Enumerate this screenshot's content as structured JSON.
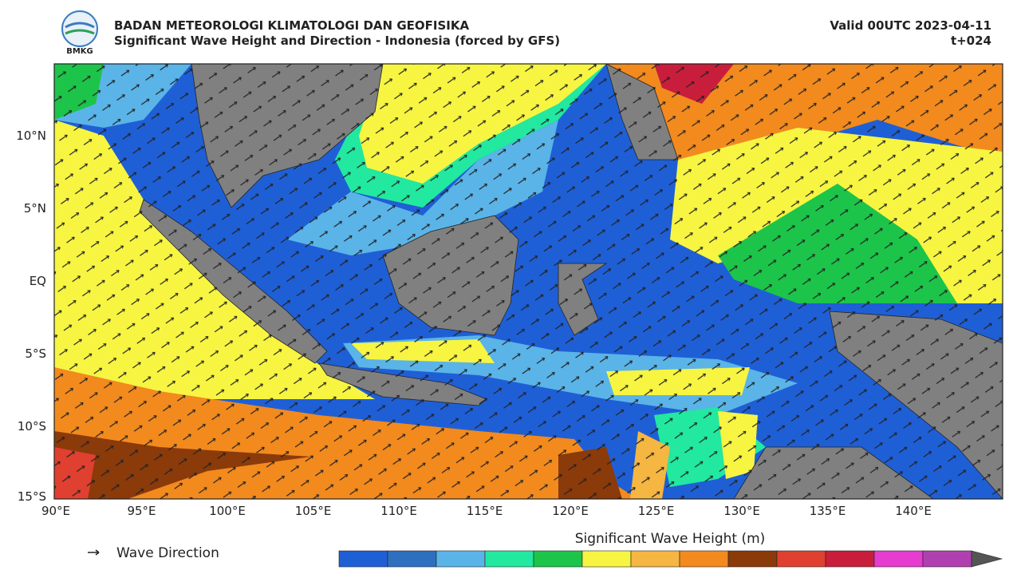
{
  "header": {
    "agency": "BADAN METEOROLOGI KLIMATOLOGI DAN GEOFISIKA",
    "subtitle": "Significant Wave Height and Direction - Indonesia (forced by GFS)",
    "valid": "Valid 00UTC 2023-04-11",
    "step": "t+024",
    "logo_text": "BMKG"
  },
  "map": {
    "lat_labels": [
      "10°N",
      "5°N",
      "EQ",
      "5°S",
      "10°S",
      "15°S"
    ],
    "lon_labels": [
      "90°E",
      "95°E",
      "100°E",
      "105°E",
      "110°E",
      "115°E",
      "120°E",
      "125°E",
      "130°E",
      "135°E",
      "140°E"
    ]
  },
  "legend": {
    "arrow_label": "Wave Direction"
  },
  "colorbar": {
    "label": "Significant Wave Height (m)",
    "colors": [
      "#1f5fd6",
      "#2f6fc0",
      "#5ab4e8",
      "#22e8a0",
      "#1dc44a",
      "#f7f542",
      "#f5b642",
      "#f28a1e",
      "#8b3a0a",
      "#e04030",
      "#c81e3c",
      "#e63ccf",
      "#b040b0"
    ]
  }
}
